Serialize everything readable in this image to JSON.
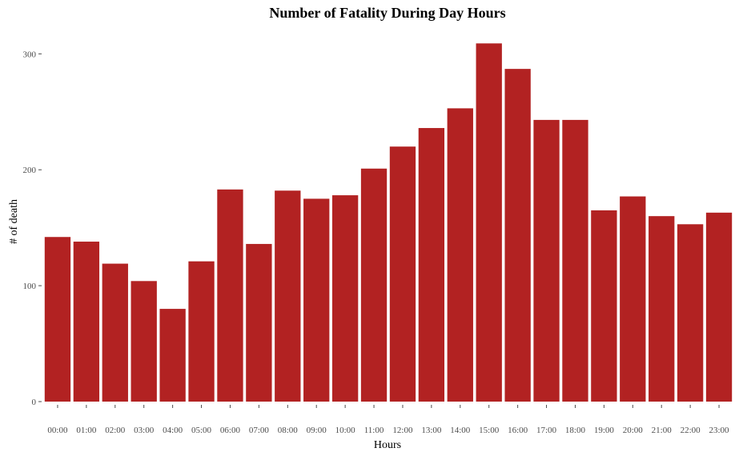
{
  "chart_data": {
    "type": "bar",
    "title": "Number of Fatality During Day Hours",
    "xlabel": "Hours",
    "ylabel": "# of death",
    "categories": [
      "00:00",
      "01:00",
      "02:00",
      "03:00",
      "04:00",
      "05:00",
      "06:00",
      "07:00",
      "08:00",
      "09:00",
      "10:00",
      "11:00",
      "12:00",
      "13:00",
      "14:00",
      "15:00",
      "16:00",
      "17:00",
      "18:00",
      "19:00",
      "20:00",
      "21:00",
      "22:00",
      "23:00"
    ],
    "values": [
      142,
      138,
      119,
      104,
      80,
      121,
      183,
      136,
      182,
      175,
      178,
      201,
      220,
      236,
      253,
      309,
      287,
      243,
      243,
      165,
      177,
      160,
      153,
      163
    ],
    "ylim": [
      0,
      320
    ],
    "yticks": [
      0,
      100,
      200,
      300
    ],
    "bar_color": "#b22222",
    "grid": false,
    "legend": "none"
  }
}
